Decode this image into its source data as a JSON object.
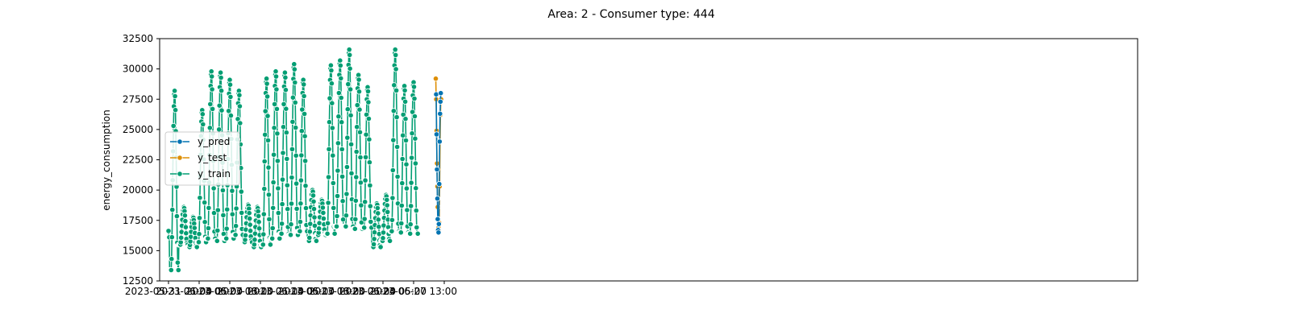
{
  "chart_data": {
    "type": "line",
    "title": "Area: 2 - Consumer type: 444",
    "xlabel": "",
    "ylabel": "energy_consumption",
    "x_unit": "hourly timestamps",
    "x_start": "2023-05-31 21:00",
    "x_tick_labels": [
      "2023-05-31 21:00",
      "2023-06-04 05:00",
      "2023-06-07 13:00",
      "2023-06-10 21:00",
      "2023-06-14 05:00",
      "2023-06-17 13:00",
      "2023-06-20 21:00",
      "2023-06-24 05:00",
      "2023-06-27 13:00",
      ""
    ],
    "ylim": [
      12500,
      32500
    ],
    "y_ticks": [
      12500,
      15000,
      17500,
      20000,
      22500,
      25000,
      27500,
      30000,
      32500
    ],
    "y_tick_labels": [
      "12500",
      "15000",
      "17500",
      "20000",
      "22500",
      "25000",
      "27500",
      "30000",
      "32500"
    ],
    "grid": false,
    "legend_position": "left",
    "daily_peaks": [
      28800,
      28200,
      18600,
      17800,
      26600,
      29800,
      29700,
      29100,
      28200,
      18800,
      18600,
      29200,
      29800,
      29700,
      30400,
      29100,
      20000,
      19200,
      30300,
      30700,
      31600,
      29500,
      28500,
      18900,
      19600,
      31600,
      28600,
      28900
    ],
    "daily_mins": [
      16100,
      13400,
      15500,
      15300,
      15700,
      16000,
      15800,
      16000,
      16300,
      15700,
      15300,
      15500,
      16000,
      16400,
      16300,
      16600,
      15800,
      16300,
      16400,
      17000,
      17000,
      16800,
      16900,
      15300,
      15800,
      16600,
      16500,
      16400
    ],
    "series": [
      {
        "name": "y_pred",
        "color": "#0173b2",
        "start": "2023-06-30 00:00",
        "values": [
          27900,
          24600,
          21700,
          19300,
          17600,
          16700,
          16500,
          17200,
          20500,
          24000,
          26300,
          27300,
          28000
        ]
      },
      {
        "name": "y_test",
        "color": "#de8f05",
        "start": "2023-06-29 23:00",
        "values": [
          29200,
          27500,
          24900,
          22200,
          20300,
          18600,
          17600,
          16900,
          16700,
          17300,
          20300,
          24000,
          26200,
          27300,
          27500
        ]
      },
      {
        "name": "y_train",
        "color": "#029e73",
        "start": "2023-05-31 21:00",
        "values": []
      }
    ]
  }
}
